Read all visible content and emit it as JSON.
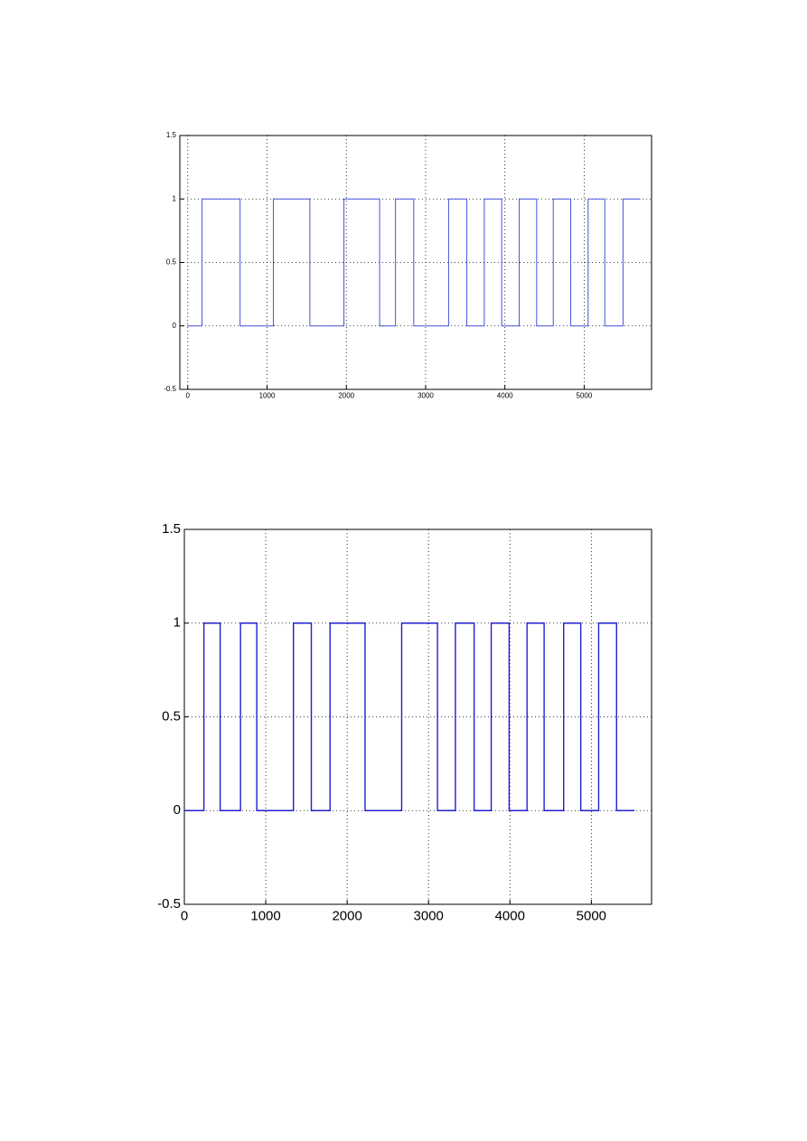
{
  "chart_data": [
    {
      "type": "line",
      "xlim": [
        -100,
        5850
      ],
      "ylim": [
        -0.5,
        1.5
      ],
      "xticks": [
        0,
        1000,
        2000,
        3000,
        4000,
        5000
      ],
      "yticks": [
        -0.5,
        0,
        0.5,
        1,
        1.5
      ],
      "grid": true,
      "series": [
        {
          "color": "#4455dd",
          "x": [
            0,
            180,
            180,
            660,
            660,
            1080,
            1080,
            1540,
            1540,
            1970,
            1970,
            2420,
            2420,
            2620,
            2620,
            2850,
            2850,
            3290,
            3290,
            3520,
            3520,
            3740,
            3740,
            3960,
            3960,
            4180,
            4180,
            4400,
            4400,
            4610,
            4610,
            4830,
            4830,
            5050,
            5050,
            5260,
            5260,
            5490,
            5490,
            5710
          ],
          "values": [
            0,
            0,
            1,
            1,
            0,
            0,
            1,
            1,
            0,
            0,
            1,
            1,
            0,
            0,
            1,
            1,
            0,
            0,
            1,
            1,
            0,
            0,
            1,
            1,
            0,
            0,
            1,
            1,
            0,
            0,
            1,
            1,
            0,
            0,
            1,
            1,
            0,
            0,
            1,
            1
          ]
        }
      ]
    },
    {
      "type": "line",
      "xlim": [
        0,
        5740
      ],
      "ylim": [
        -0.5,
        1.5
      ],
      "xticks": [
        0,
        1000,
        2000,
        3000,
        4000,
        5000
      ],
      "yticks": [
        -0.5,
        0,
        0.5,
        1,
        1.5
      ],
      "grid": true,
      "series": [
        {
          "color": "#1f1fd0",
          "x": [
            0,
            240,
            240,
            440,
            440,
            690,
            690,
            890,
            890,
            1340,
            1340,
            1560,
            1560,
            1790,
            1790,
            2220,
            2220,
            2670,
            2670,
            3110,
            3110,
            3330,
            3330,
            3560,
            3560,
            3770,
            3770,
            3990,
            3990,
            4210,
            4210,
            4420,
            4420,
            4660,
            4660,
            4870,
            4870,
            5090,
            5090,
            5310,
            5310,
            5530
          ],
          "values": [
            0,
            0,
            1,
            1,
            0,
            0,
            1,
            1,
            0,
            0,
            1,
            1,
            0,
            0,
            1,
            1,
            0,
            0,
            1,
            1,
            0,
            0,
            1,
            1,
            0,
            0,
            1,
            1,
            0,
            0,
            1,
            1,
            0,
            0,
            1,
            1,
            0,
            0,
            1,
            1,
            0,
            0
          ]
        }
      ]
    }
  ]
}
